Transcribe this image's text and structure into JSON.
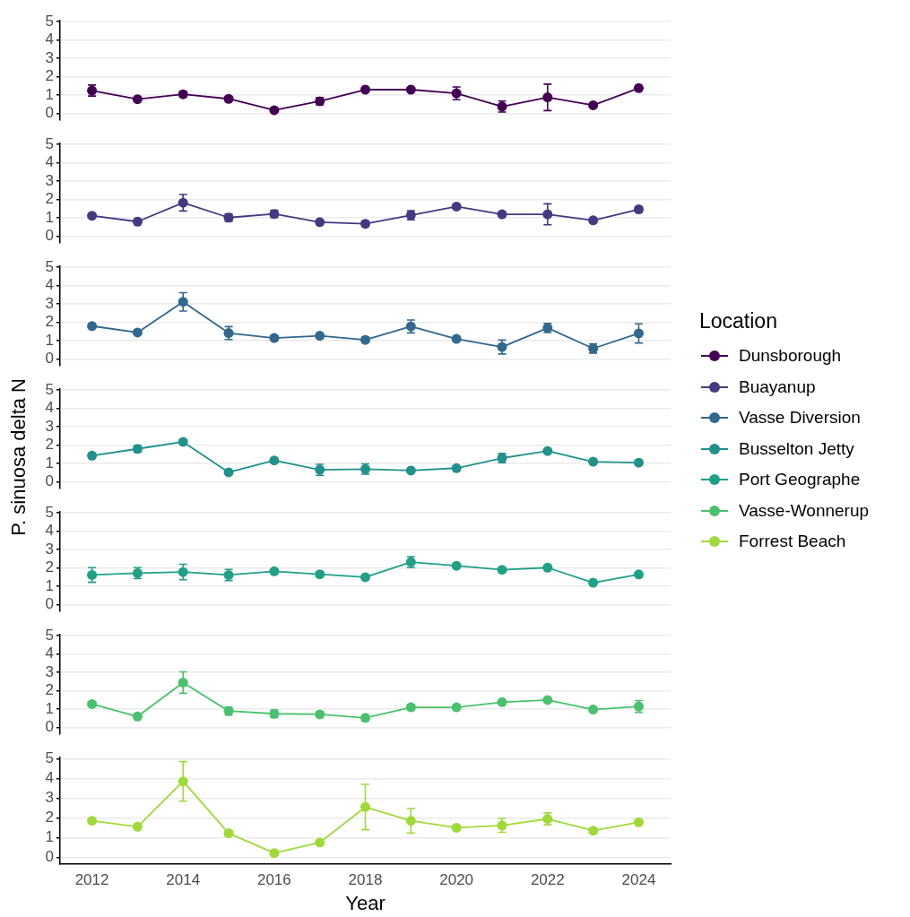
{
  "chart_data": [
    {
      "type": "line",
      "legend": "right",
      "legend_title": "Location",
      "grid": "y",
      "marker": "circle",
      "tick_labels": "y",
      "xlim": [
        2011.3,
        2024.7
      ],
      "xticks": [
        2012,
        2014,
        2016,
        2018,
        2020,
        2022,
        2024
      ],
      "ylim": [
        -0.35,
        5.05
      ],
      "yticks": [
        0,
        1,
        2,
        3,
        4,
        5
      ],
      "x": [
        2012,
        2013,
        2014,
        2015,
        2016,
        2017,
        2018,
        2019,
        2020,
        2021,
        2022,
        2023,
        2024
      ],
      "series": [
        {
          "name": "Dunsborough",
          "color": "#440154",
          "values": [
            1.25,
            0.78,
            1.05,
            0.8,
            0.18,
            0.67,
            1.3,
            1.3,
            1.1,
            0.38,
            0.88,
            0.45,
            1.38
          ],
          "errors": [
            0.3,
            0.08,
            0.15,
            0.12,
            0.1,
            0.2,
            0.05,
            0.08,
            0.35,
            0.3,
            0.72,
            0.05,
            0.08
          ]
        }
      ]
    },
    {
      "type": "line",
      "legend": "right",
      "grid": "y",
      "marker": "circle",
      "tick_labels": "y",
      "xlim": [
        2011.3,
        2024.7
      ],
      "xticks": [
        2012,
        2014,
        2016,
        2018,
        2020,
        2022,
        2024
      ],
      "ylim": [
        -0.35,
        5.05
      ],
      "yticks": [
        0,
        1,
        2,
        3,
        4,
        5
      ],
      "x": [
        2012,
        2013,
        2014,
        2015,
        2016,
        2017,
        2018,
        2019,
        2020,
        2021,
        2022,
        2023,
        2024
      ],
      "series": [
        {
          "name": "Buayanup",
          "color": "#443983",
          "values": [
            1.12,
            0.8,
            1.83,
            1.02,
            1.22,
            0.77,
            0.68,
            1.15,
            1.62,
            1.2,
            1.2,
            0.87,
            1.47
          ],
          "errors": [
            0.1,
            0.05,
            0.45,
            0.2,
            0.2,
            0.07,
            0.15,
            0.25,
            0.05,
            0.05,
            0.57,
            0.05,
            0.15
          ]
        }
      ]
    },
    {
      "type": "line",
      "legend": "right",
      "grid": "y",
      "marker": "circle",
      "tick_labels": "y",
      "xlim": [
        2011.3,
        2024.7
      ],
      "xticks": [
        2012,
        2014,
        2016,
        2018,
        2020,
        2022,
        2024
      ],
      "ylim": [
        -0.35,
        5.05
      ],
      "yticks": [
        0,
        1,
        2,
        3,
        4,
        5
      ],
      "x": [
        2012,
        2013,
        2014,
        2015,
        2016,
        2017,
        2018,
        2019,
        2020,
        2021,
        2022,
        2023,
        2024
      ],
      "series": [
        {
          "name": "Vasse Diversion",
          "color": "#31688e",
          "values": [
            1.8,
            1.45,
            3.12,
            1.42,
            1.15,
            1.27,
            1.05,
            1.78,
            1.1,
            0.66,
            1.7,
            0.58,
            1.4
          ],
          "errors": [
            0.12,
            0.05,
            0.5,
            0.35,
            0.12,
            0.05,
            0.15,
            0.35,
            0.05,
            0.38,
            0.25,
            0.25,
            0.52
          ]
        }
      ]
    },
    {
      "type": "line",
      "legend": "right",
      "ylabel": "P. sinuosa delta N",
      "grid": "y",
      "marker": "circle",
      "tick_labels": "y",
      "xlim": [
        2011.3,
        2024.7
      ],
      "xticks": [
        2012,
        2014,
        2016,
        2018,
        2020,
        2022,
        2024
      ],
      "ylim": [
        -0.35,
        5.05
      ],
      "yticks": [
        0,
        1,
        2,
        3,
        4,
        5
      ],
      "x": [
        2012,
        2013,
        2014,
        2015,
        2016,
        2017,
        2018,
        2019,
        2020,
        2021,
        2022,
        2023,
        2024
      ],
      "series": [
        {
          "name": "Busselton Jetty",
          "color": "#21918c",
          "values": [
            1.43,
            1.8,
            2.18,
            0.52,
            1.17,
            0.66,
            0.7,
            0.62,
            0.75,
            1.3,
            1.68,
            1.1,
            1.05
          ],
          "errors": [
            0.1,
            0.18,
            0.05,
            0.1,
            0.05,
            0.3,
            0.28,
            0.05,
            0.05,
            0.25,
            0.05,
            0.05,
            0.12
          ]
        }
      ]
    },
    {
      "type": "line",
      "legend": "right",
      "grid": "y",
      "marker": "circle",
      "tick_labels": "y",
      "xlim": [
        2011.3,
        2024.7
      ],
      "xticks": [
        2012,
        2014,
        2016,
        2018,
        2020,
        2022,
        2024
      ],
      "ylim": [
        -0.35,
        5.05
      ],
      "yticks": [
        0,
        1,
        2,
        3,
        4,
        5
      ],
      "x": [
        2012,
        2013,
        2014,
        2015,
        2016,
        2017,
        2018,
        2019,
        2020,
        2021,
        2022,
        2023,
        2024
      ],
      "series": [
        {
          "name": "Port Geographe",
          "color": "#1fa187",
          "values": [
            1.62,
            1.72,
            1.78,
            1.62,
            1.82,
            1.66,
            1.5,
            2.32,
            2.12,
            1.9,
            2.02,
            1.2,
            1.65
          ],
          "errors": [
            0.4,
            0.3,
            0.42,
            0.3,
            0.1,
            0.12,
            0.12,
            0.3,
            0.05,
            0.05,
            0.05,
            0.05,
            0.05
          ]
        }
      ]
    },
    {
      "type": "line",
      "legend": "right",
      "grid": "y",
      "marker": "circle",
      "tick_labels": "y",
      "xlim": [
        2011.3,
        2024.7
      ],
      "xticks": [
        2012,
        2014,
        2016,
        2018,
        2020,
        2022,
        2024
      ],
      "ylim": [
        -0.35,
        5.05
      ],
      "yticks": [
        0,
        1,
        2,
        3,
        4,
        5
      ],
      "x": [
        2012,
        2013,
        2014,
        2015,
        2016,
        2017,
        2018,
        2019,
        2020,
        2021,
        2022,
        2023,
        2024
      ],
      "series": [
        {
          "name": "Vasse-Wonnerup",
          "color": "#4ac16d",
          "values": [
            1.28,
            0.6,
            2.45,
            0.9,
            0.75,
            0.72,
            0.53,
            1.1,
            1.1,
            1.38,
            1.5,
            0.98,
            1.15
          ],
          "errors": [
            0.05,
            0.05,
            0.58,
            0.22,
            0.2,
            0.15,
            0.15,
            0.15,
            0.05,
            0.05,
            0.05,
            0.05,
            0.32
          ]
        }
      ]
    },
    {
      "type": "line",
      "legend": "right",
      "xlabel": "Year",
      "grid": "y",
      "marker": "circle",
      "xlim": [
        2011.3,
        2024.7
      ],
      "xticks": [
        2012,
        2014,
        2016,
        2018,
        2020,
        2022,
        2024
      ],
      "ylim": [
        -0.35,
        5.05
      ],
      "yticks": [
        0,
        1,
        2,
        3,
        4,
        5
      ],
      "x": [
        2012,
        2013,
        2014,
        2015,
        2016,
        2017,
        2018,
        2019,
        2020,
        2021,
        2022,
        2023,
        2024
      ],
      "series": [
        {
          "name": "Forrest Beach",
          "color": "#a0da39",
          "values": [
            1.85,
            1.55,
            3.85,
            1.22,
            0.22,
            0.75,
            2.55,
            1.85,
            1.5,
            1.62,
            1.95,
            1.35,
            1.78
          ],
          "errors": [
            0.05,
            0.05,
            1.0,
            0.12,
            0.12,
            0.05,
            1.15,
            0.62,
            0.05,
            0.35,
            0.3,
            0.12,
            0.05
          ]
        }
      ]
    }
  ]
}
